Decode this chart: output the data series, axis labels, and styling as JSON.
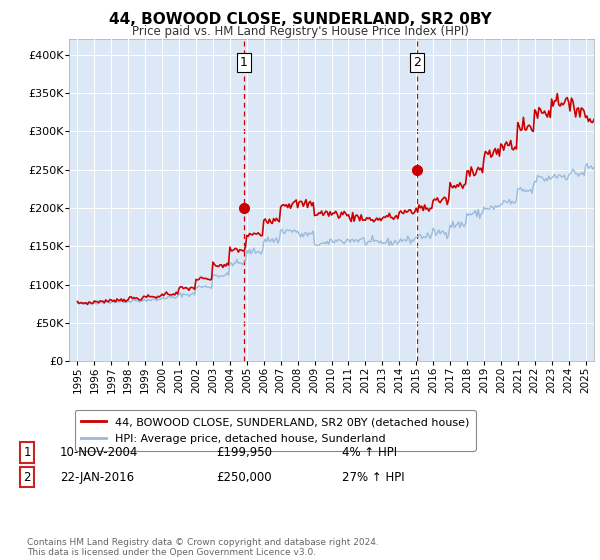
{
  "title": "44, BOWOOD CLOSE, SUNDERLAND, SR2 0BY",
  "subtitle": "Price paid vs. HM Land Registry's House Price Index (HPI)",
  "ylim": [
    0,
    420000
  ],
  "yticks": [
    0,
    50000,
    100000,
    150000,
    200000,
    250000,
    300000,
    350000,
    400000
  ],
  "ytick_labels": [
    "£0",
    "£50K",
    "£100K",
    "£150K",
    "£200K",
    "£250K",
    "£300K",
    "£350K",
    "£400K"
  ],
  "plot_bg_color": "#dce8f5",
  "sale1_x": 9.83,
  "sale1_price": 199950,
  "sale2_x": 20.05,
  "sale2_price": 250000,
  "legend_line1": "44, BOWOOD CLOSE, SUNDERLAND, SR2 0BY (detached house)",
  "legend_line2": "HPI: Average price, detached house, Sunderland",
  "table_row1_date": "10-NOV-2004",
  "table_row1_price": "£199,950",
  "table_row1_hpi": "4% ↑ HPI",
  "table_row2_date": "22-JAN-2016",
  "table_row2_price": "£250,000",
  "table_row2_hpi": "27% ↑ HPI",
  "copyright_text": "Contains HM Land Registry data © Crown copyright and database right 2024.\nThis data is licensed under the Open Government Licence v3.0.",
  "line_color_property": "#cc0000",
  "line_color_hpi": "#99bbdd",
  "vline_color": "#cc0000",
  "years": [
    "1995",
    "1996",
    "1997",
    "1998",
    "1999",
    "2000",
    "2001",
    "2002",
    "2003",
    "2004",
    "2005",
    "2006",
    "2007",
    "2008",
    "2009",
    "2010",
    "2011",
    "2012",
    "2013",
    "2014",
    "2015",
    "2016",
    "2017",
    "2018",
    "2019",
    "2020",
    "2021",
    "2022",
    "2023",
    "2024",
    "2025"
  ],
  "hpi_values": [
    75000,
    77000,
    78000,
    79000,
    80000,
    83000,
    87000,
    97000,
    112000,
    128000,
    143000,
    158000,
    170000,
    165000,
    153000,
    157000,
    158000,
    155000,
    155000,
    158000,
    163000,
    168000,
    178000,
    192000,
    200000,
    207000,
    222000,
    238000,
    242000,
    245000,
    252000
  ],
  "property_values": [
    76000,
    78000,
    80000,
    82000,
    84000,
    88000,
    95000,
    107000,
    125000,
    145000,
    165000,
    185000,
    205000,
    205000,
    193000,
    192000,
    188000,
    185000,
    188000,
    194000,
    200000,
    210000,
    228000,
    250000,
    270000,
    282000,
    305000,
    325000,
    340000,
    330000,
    315000
  ],
  "hpi_noise_seed": 42,
  "prop_noise_seed": 7
}
